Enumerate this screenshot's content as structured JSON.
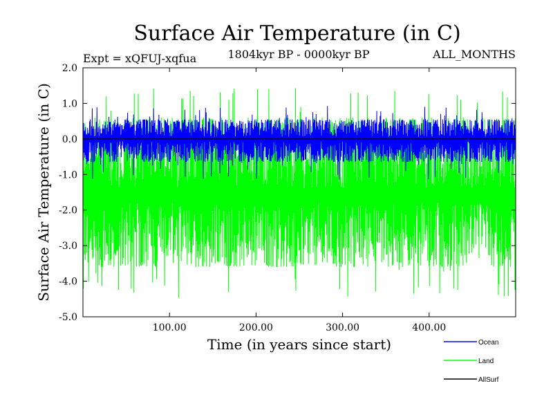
{
  "chart_data": {
    "type": "line",
    "title": "Surface Air Temperature (in C)",
    "experiment": "Expt = xQFUJ-xqfua",
    "period": "1804kyr BP - 0000kyr BP",
    "months": "ALL_MONTHS",
    "xlabel": "Time (in years since start)",
    "ylabel": "Surface Air Temperature (in C)",
    "xlim": [
      0,
      500
    ],
    "ylim": [
      -5.0,
      2.0
    ],
    "x_ticks": [
      {
        "value": 100,
        "label": "100.00"
      },
      {
        "value": 200,
        "label": "200.00"
      },
      {
        "value": 300,
        "label": "300.00"
      },
      {
        "value": 400,
        "label": "400.00"
      }
    ],
    "y_ticks": [
      {
        "value": 2.0,
        "label": "2.0"
      },
      {
        "value": 1.0,
        "label": "1.0"
      },
      {
        "value": 0.0,
        "label": "0.0"
      },
      {
        "value": -1.0,
        "label": "-1.0"
      },
      {
        "value": -2.0,
        "label": "-2.0"
      },
      {
        "value": -3.0,
        "label": "-3.0"
      },
      {
        "value": -4.0,
        "label": "-4.0"
      },
      {
        "value": -5.0,
        "label": "-5.0"
      }
    ],
    "zero_line": 0.0,
    "series": [
      {
        "name": "Land",
        "color": "#00ff00",
        "center": -1.6,
        "min": -4.5,
        "max": 1.45,
        "typical_low": -3.6,
        "typical_high": 0.6
      },
      {
        "name": "Ocean",
        "color": "#0000ff",
        "center": 0.0,
        "min": -1.15,
        "max": 0.95,
        "typical_low": -0.65,
        "typical_high": 0.55
      },
      {
        "name": "AllSurf",
        "color": "#000000",
        "center": 0.0,
        "min": 0.0,
        "max": 0.0,
        "typical_low": 0.0,
        "typical_high": 0.0
      }
    ],
    "legend": [
      {
        "name": "Ocean",
        "color": "#0000ff"
      },
      {
        "name": "Land",
        "color": "#00ff00"
      },
      {
        "name": "AllSurf",
        "color": "#000000"
      }
    ]
  }
}
